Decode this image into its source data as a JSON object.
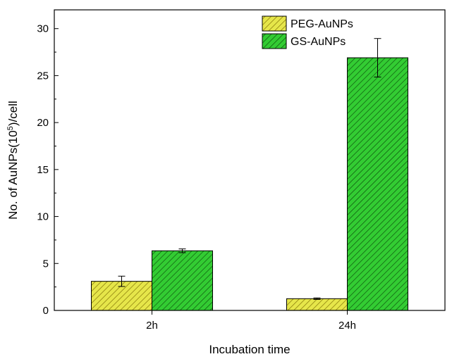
{
  "chart_data": {
    "type": "bar",
    "categories": [
      "2h",
      "24h"
    ],
    "series": [
      {
        "name": "PEG-AuNPs",
        "values": [
          3.1,
          1.25
        ],
        "errors": [
          0.55,
          0.08
        ],
        "color": "#e6e64a",
        "hatch": "#7a6a00"
      },
      {
        "name": "GS-AuNPs",
        "values": [
          6.35,
          26.9
        ],
        "errors": [
          0.2,
          2.05
        ],
        "color": "#33cc33",
        "hatch": "#0a4a0a"
      }
    ],
    "xlabel": "Incubation time",
    "ylabel": {
      "prefix": "No. of AuNPs(10",
      "superscript": "5",
      "suffix": ")/cell"
    },
    "ylim": [
      0,
      32
    ],
    "yticks": [
      0,
      5,
      10,
      15,
      20,
      25,
      30
    ],
    "grid": false,
    "legend_position": "top-center",
    "hatch_pattern": "diagonal"
  }
}
